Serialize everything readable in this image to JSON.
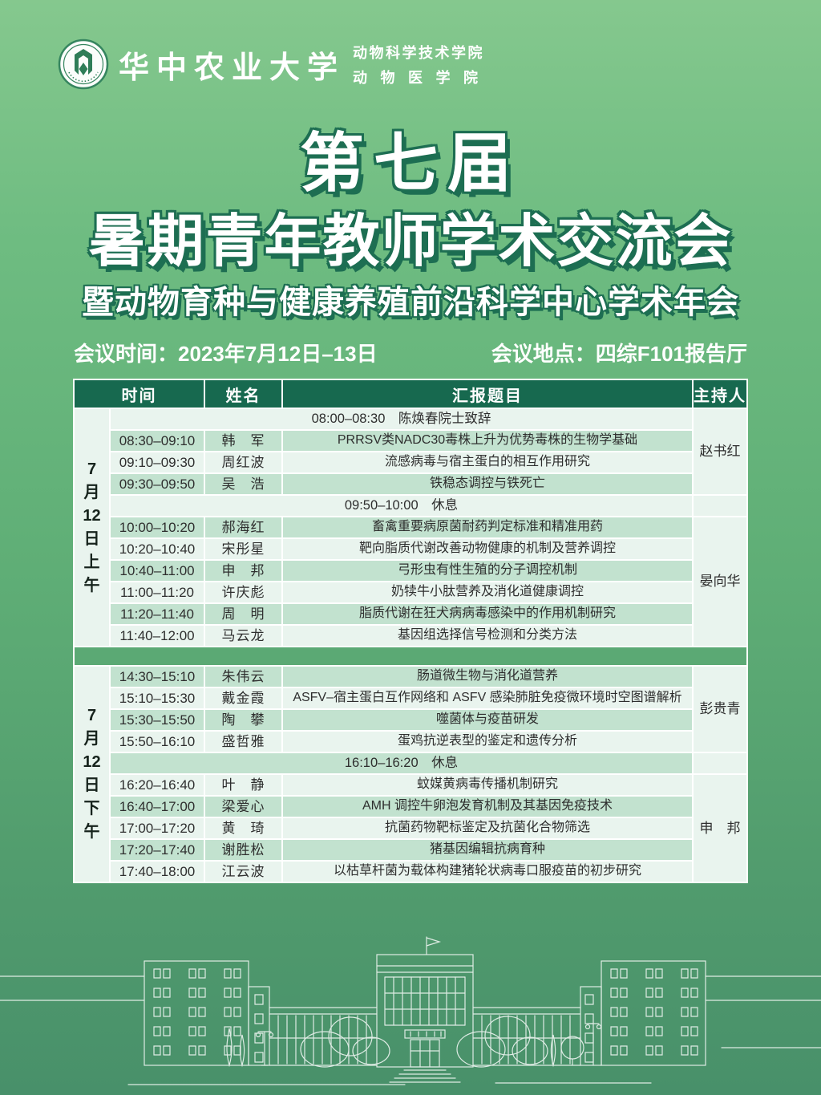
{
  "colors": {
    "bg-top": "#85c88e",
    "bg-mid": "#5fae76",
    "bg-bottom": "#48906a",
    "header-green": "#17694f",
    "row-light": "#e9f4ee",
    "row-med": "#c2e2cf",
    "band": "#5ba974",
    "title-outline": "#1d6e52",
    "ink": "#2e2e2e"
  },
  "logo": {
    "university": "华中农业大学",
    "college_line1": "动物科学技术学院",
    "college_line2": "动物医学院",
    "seal_icon": "university-round-seal"
  },
  "title": {
    "line1": "第七届",
    "line2": "暑期青年教师学术交流会",
    "line3": "暨动物育种与健康养殖前沿科学中心学术年会"
  },
  "meta": {
    "time_label": "会议时间：2023年7月12日–13日",
    "location_label": "会议地点：四综F101报告厅"
  },
  "table": {
    "headers": [
      "时间",
      "姓名",
      "汇报题目",
      "主持人"
    ],
    "sessions": [
      {
        "label": [
          "7",
          "月",
          "12",
          "日",
          "上",
          "午"
        ],
        "stripe_start": "light",
        "rows": [
          {
            "type": "break",
            "text": "08:00–08:30　陈焕春院士致辞"
          },
          {
            "type": "talk",
            "time": "08:30–09:10",
            "name": "韩　军",
            "title": "PRRSV类NADC30毒株上升为优势毒株的生物学基础"
          },
          {
            "type": "talk",
            "time": "09:10–09:30",
            "name": "周红波",
            "title": "流感病毒与宿主蛋白的相互作用研究"
          },
          {
            "type": "talk",
            "time": "09:30–09:50",
            "name": "吴　浩",
            "title": "铁稳态调控与铁死亡"
          },
          {
            "type": "break",
            "text": "09:50–10:00　休息"
          },
          {
            "type": "talk",
            "time": "10:00–10:20",
            "name": "郝海红",
            "title": "畜禽重要病原菌耐药判定标准和精准用药"
          },
          {
            "type": "talk",
            "time": "10:20–10:40",
            "name": "宋彤星",
            "title": "靶向脂质代谢改善动物健康的机制及营养调控"
          },
          {
            "type": "talk",
            "time": "10:40–11:00",
            "name": "申　邦",
            "title": "弓形虫有性生殖的分子调控机制"
          },
          {
            "type": "talk",
            "time": "11:00–11:20",
            "name": "许庆彪",
            "title": "奶犊牛小肽营养及消化道健康调控"
          },
          {
            "type": "talk",
            "time": "11:20–11:40",
            "name": "周　明",
            "title": "脂质代谢在狂犬病病毒感染中的作用机制研究"
          },
          {
            "type": "talk",
            "time": "11:40–12:00",
            "name": "马云龙",
            "title": "基因组选择信号检测和分类方法"
          }
        ],
        "hosts": [
          {
            "name": "赵书红",
            "span": 4
          },
          {
            "name": "",
            "span": 1
          },
          {
            "name": "晏向华",
            "span": 6
          }
        ]
      },
      {
        "label": [
          "7",
          "月",
          "12",
          "日",
          "下",
          "午"
        ],
        "stripe_start": "med",
        "rows": [
          {
            "type": "talk",
            "time": "14:30–15:10",
            "name": "朱伟云",
            "title": "肠道微生物与消化道营养"
          },
          {
            "type": "talk",
            "time": "15:10–15:30",
            "name": "戴金霞",
            "title": "ASFV–宿主蛋白互作网络和 ASFV 感染肺脏免疫微环境时空图谱解析"
          },
          {
            "type": "talk",
            "time": "15:30–15:50",
            "name": "陶　攀",
            "title": "噬菌体与疫苗研发"
          },
          {
            "type": "talk",
            "time": "15:50–16:10",
            "name": "盛哲雅",
            "title": "蛋鸡抗逆表型的鉴定和遗传分析"
          },
          {
            "type": "break",
            "text": "16:10–16:20　休息"
          },
          {
            "type": "talk",
            "time": "16:20–16:40",
            "name": "叶　静",
            "title": "蚊媒黄病毒传播机制研究"
          },
          {
            "type": "talk",
            "time": "16:40–17:00",
            "name": "梁爱心",
            "title": "AMH 调控牛卵泡发育机制及其基因免疫技术"
          },
          {
            "type": "talk",
            "time": "17:00–17:20",
            "name": "黄　琦",
            "title": "抗菌药物靶标鉴定及抗菌化合物筛选"
          },
          {
            "type": "talk",
            "time": "17:20–17:40",
            "name": "谢胜松",
            "title": "猪基因编辑抗病育种"
          },
          {
            "type": "talk",
            "time": "17:40–18:00",
            "name": "江云波",
            "title": "以枯草杆菌为载体构建猪轮状病毒口服疫苗的初步研究"
          }
        ],
        "hosts": [
          {
            "name": "彭贵青",
            "span": 4
          },
          {
            "name": "",
            "span": 1
          },
          {
            "name": "申　邦",
            "span": 5
          }
        ]
      }
    ]
  }
}
